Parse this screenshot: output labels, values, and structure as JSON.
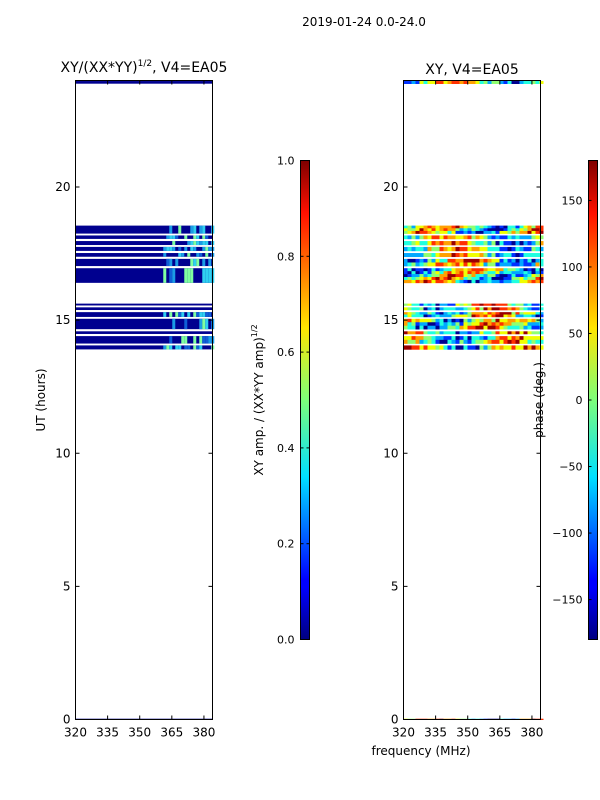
{
  "figure": {
    "suptitle": "2019-01-24 0.0-24.0",
    "shared_xlabel": "frequency (MHz)"
  },
  "colors": {
    "background": "#ffffff",
    "data_fill": "#00008f",
    "amp_highlight": [
      "#0f5fd6",
      "#1a9ce6",
      "#2fd0f0",
      "#7fffa0"
    ],
    "phase_palette": [
      "#00008f",
      "#0030ff",
      "#00a8ff",
      "#20ffe0",
      "#90ff70",
      "#f0ff00",
      "#ffa000",
      "#ff3000",
      "#9a0000"
    ]
  },
  "chart_data": [
    {
      "type": "heatmap",
      "title": "XY/(XX*YY)^{1/2}, V4=EA05",
      "title_main": "XY/(XX*YY)",
      "title_sup": "1/2",
      "title_tail": ", V4=EA05",
      "xlabel": "",
      "ylabel": "UT (hours)",
      "xlim": [
        320,
        384
      ],
      "ylim": [
        0,
        24
      ],
      "xticks": [
        320,
        335,
        350,
        365,
        380
      ],
      "yticks": [
        0,
        5,
        10,
        15,
        20
      ],
      "grid": false,
      "data_bands": [
        {
          "from": 0.0,
          "to": 0.03
        },
        {
          "from": 13.9,
          "to": 14.05
        },
        {
          "from": 14.12,
          "to": 14.4
        },
        {
          "from": 14.48,
          "to": 14.58
        },
        {
          "from": 14.66,
          "to": 15.05
        },
        {
          "from": 15.12,
          "to": 15.3
        },
        {
          "from": 15.38,
          "to": 15.48
        },
        {
          "from": 15.55,
          "to": 15.62
        },
        {
          "from": 16.4,
          "to": 16.95
        },
        {
          "from": 17.03,
          "to": 17.3
        },
        {
          "from": 17.38,
          "to": 17.52
        },
        {
          "from": 17.6,
          "to": 17.75
        },
        {
          "from": 17.82,
          "to": 17.97
        },
        {
          "from": 18.05,
          "to": 18.18
        },
        {
          "from": 18.25,
          "to": 18.55
        },
        {
          "from": 23.88,
          "to": 23.98
        }
      ],
      "highlight_frequency_range": [
        361,
        384
      ],
      "colorbar": {
        "label_main": "XY amp. / (XX*YY amp)",
        "label_sup": "1/2",
        "min": 0.0,
        "max": 1.0,
        "ticks": [
          "0.0",
          "0.2",
          "0.4",
          "0.6",
          "0.8",
          "1.0"
        ]
      }
    },
    {
      "type": "heatmap",
      "title": "XY, V4=EA05",
      "xlabel": "frequency (MHz)",
      "ylabel": "",
      "xlim": [
        320,
        384
      ],
      "ylim": [
        0,
        24
      ],
      "xticks": [
        320,
        335,
        350,
        365,
        380
      ],
      "yticks": [
        0,
        5,
        10,
        15,
        20
      ],
      "grid": false,
      "data_bands": [
        {
          "from": 0.0,
          "to": 0.03
        },
        {
          "from": 13.9,
          "to": 14.05
        },
        {
          "from": 14.12,
          "to": 14.4
        },
        {
          "from": 14.48,
          "to": 14.58
        },
        {
          "from": 14.66,
          "to": 15.05
        },
        {
          "from": 15.12,
          "to": 15.3
        },
        {
          "from": 15.38,
          "to": 15.48
        },
        {
          "from": 15.55,
          "to": 15.62
        },
        {
          "from": 16.4,
          "to": 16.95
        },
        {
          "from": 17.03,
          "to": 17.3
        },
        {
          "from": 17.38,
          "to": 17.52
        },
        {
          "from": 17.6,
          "to": 17.75
        },
        {
          "from": 17.82,
          "to": 17.97
        },
        {
          "from": 18.05,
          "to": 18.18
        },
        {
          "from": 18.25,
          "to": 18.55
        },
        {
          "from": 23.88,
          "to": 23.98
        }
      ],
      "colorbar": {
        "label": "phase (deg.)",
        "min": -180,
        "max": 180,
        "ticks": [
          "−150",
          "−100",
          "−50",
          "0",
          "50",
          "100",
          "150"
        ],
        "tick_values": [
          -150,
          -100,
          -50,
          0,
          50,
          100,
          150
        ]
      }
    }
  ]
}
